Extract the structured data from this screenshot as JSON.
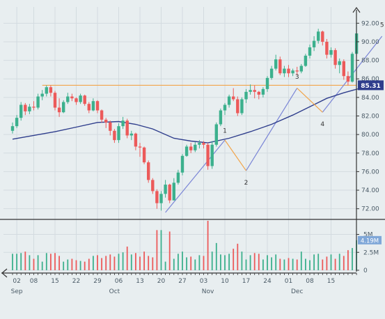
{
  "chart_data": {
    "type": "candlestick",
    "price_axis": {
      "min": 71,
      "max": 93,
      "ticks": [
        72,
        74,
        76,
        78,
        80,
        82,
        84,
        86,
        88,
        90,
        92
      ]
    },
    "price_tick_labels": [
      "72.00",
      "74.00",
      "76.00",
      "78.00",
      "80.00",
      "82.00",
      "84.00",
      "86.00",
      "88.00",
      "90.00",
      "92.00"
    ],
    "volume_axis": {
      "max": 6.8,
      "ticks": [
        0,
        2.5,
        5
      ],
      "tick_labels": [
        "0",
        "2.5M",
        "5M"
      ]
    },
    "x_day_labels": [
      "02",
      "08",
      "15",
      "22",
      "29",
      "06",
      "13",
      "20",
      "27",
      "03",
      "10",
      "17",
      "24",
      "01",
      "08",
      "15"
    ],
    "x_day_indices": [
      1,
      5,
      10,
      15,
      20,
      25,
      30,
      35,
      40,
      45,
      50,
      55,
      60,
      65,
      70,
      75
    ],
    "x_month_labels": [
      "Sep",
      "Oct",
      "Nov",
      "Dec"
    ],
    "x_month_indices": [
      1,
      24,
      46,
      67
    ],
    "colors": {
      "up": "#3cb08d",
      "down": "#ec5a5a",
      "ma": "#2e3d8c",
      "resistance": "#f2a54a",
      "trendline": "#7b86d6",
      "wave": "#f2a54a",
      "badge": "#2e3d8c",
      "vol_badge": "#7fa7d8"
    },
    "horizontal_line": {
      "value": 85.31,
      "label": "85.31"
    },
    "last_volume": {
      "value": 4.19,
      "label": "4.19M"
    },
    "wave_labels": [
      "1",
      "2",
      "3",
      "4",
      "5"
    ],
    "candles": [
      [
        80.4,
        81.3,
        80.1,
        80.9,
        2.3
      ],
      [
        80.9,
        82.1,
        80.7,
        81.8,
        2.3
      ],
      [
        81.8,
        83.5,
        81.5,
        83.2,
        2.4
      ],
      [
        83.2,
        83.4,
        82.1,
        82.5,
        2.6
      ],
      [
        82.5,
        83.3,
        82.2,
        83.0,
        2.1
      ],
      [
        83.0,
        83.6,
        82.6,
        82.9,
        1.6
      ],
      [
        82.9,
        84.4,
        82.7,
        84.1,
        2.1
      ],
      [
        84.1,
        84.8,
        83.7,
        84.4,
        1.2
      ],
      [
        84.4,
        85.3,
        84.1,
        85.1,
        2.4
      ],
      [
        85.1,
        85.3,
        84.1,
        84.5,
        2.3
      ],
      [
        84.5,
        84.7,
        82.6,
        82.9,
        2.4
      ],
      [
        82.9,
        83.9,
        81.9,
        82.4,
        2.0
      ],
      [
        82.4,
        83.7,
        82.3,
        83.5,
        1.2
      ],
      [
        83.5,
        84.5,
        83.3,
        84.1,
        1.5
      ],
      [
        84.1,
        84.4,
        83.6,
        83.9,
        1.6
      ],
      [
        83.9,
        84.0,
        83.2,
        83.5,
        1.4
      ],
      [
        83.5,
        84.4,
        83.3,
        84.2,
        1.3
      ],
      [
        84.2,
        84.3,
        83.1,
        83.3,
        1.2
      ],
      [
        83.3,
        83.5,
        82.3,
        82.6,
        1.6
      ],
      [
        82.6,
        83.9,
        82.5,
        83.6,
        2.0
      ],
      [
        83.6,
        83.7,
        82.3,
        82.6,
        2.1
      ],
      [
        82.6,
        82.7,
        81.3,
        81.6,
        1.7
      ],
      [
        81.6,
        81.8,
        80.7,
        81.3,
        2.0
      ],
      [
        81.3,
        81.5,
        79.9,
        80.4,
        2.2
      ],
      [
        80.4,
        80.6,
        79.1,
        79.4,
        1.9
      ],
      [
        79.4,
        81.2,
        79.1,
        80.9,
        2.3
      ],
      [
        80.9,
        81.9,
        80.6,
        81.5,
        2.5
      ],
      [
        81.5,
        81.7,
        79.6,
        79.9,
        3.3
      ],
      [
        79.9,
        80.4,
        79.4,
        80.1,
        2.2
      ],
      [
        80.1,
        80.2,
        78.3,
        78.7,
        2.4
      ],
      [
        78.7,
        79.1,
        77.6,
        78.6,
        1.9
      ],
      [
        78.6,
        78.7,
        76.8,
        77.0,
        2.6
      ],
      [
        77.0,
        77.2,
        74.8,
        75.1,
        2.0
      ],
      [
        75.1,
        75.3,
        73.6,
        73.9,
        1.8
      ],
      [
        73.9,
        74.1,
        72.0,
        72.6,
        5.6
      ],
      [
        72.6,
        73.9,
        71.8,
        73.6,
        5.6
      ],
      [
        73.6,
        75.1,
        73.2,
        74.6,
        1.2
      ],
      [
        74.6,
        74.7,
        72.6,
        72.9,
        5.4
      ],
      [
        72.9,
        75.3,
        72.9,
        74.8,
        1.6
      ],
      [
        74.8,
        76.2,
        74.6,
        75.9,
        2.3
      ],
      [
        75.9,
        77.9,
        75.6,
        77.7,
        2.6
      ],
      [
        77.7,
        78.9,
        77.6,
        78.7,
        1.8
      ],
      [
        78.7,
        79.1,
        78.0,
        78.3,
        1.9
      ],
      [
        78.3,
        79.2,
        78.1,
        78.9,
        1.5
      ],
      [
        78.9,
        79.4,
        78.5,
        79.1,
        2.1
      ],
      [
        79.1,
        79.3,
        78.5,
        78.9,
        2.0
      ],
      [
        78.9,
        79.1,
        76.2,
        76.6,
        6.9
      ],
      [
        76.6,
        79.3,
        76.3,
        78.9,
        2.6
      ],
      [
        78.9,
        81.3,
        78.7,
        81.1,
        3.8
      ],
      [
        81.1,
        82.8,
        80.9,
        82.6,
        2.2
      ],
      [
        82.6,
        83.4,
        82.1,
        83.2,
        2.1
      ],
      [
        83.2,
        84.3,
        82.9,
        84.1,
        2.3
      ],
      [
        84.1,
        85.0,
        83.6,
        83.8,
        3.0
      ],
      [
        83.8,
        84.1,
        82.0,
        82.3,
        3.7
      ],
      [
        82.3,
        84.0,
        82.1,
        83.8,
        2.6
      ],
      [
        83.8,
        84.9,
        83.4,
        84.6,
        1.5
      ],
      [
        84.6,
        85.4,
        84.3,
        84.8,
        2.1
      ],
      [
        84.8,
        85.3,
        83.9,
        84.6,
        2.4
      ],
      [
        84.6,
        84.7,
        83.8,
        84.3,
        2.3
      ],
      [
        84.3,
        85.1,
        84.0,
        84.9,
        1.5
      ],
      [
        84.9,
        86.3,
        84.6,
        86.1,
        2.1
      ],
      [
        86.1,
        87.4,
        85.9,
        87.1,
        1.8
      ],
      [
        87.1,
        88.6,
        86.9,
        88.1,
        2.2
      ],
      [
        88.1,
        88.4,
        86.4,
        86.6,
        1.6
      ],
      [
        86.6,
        87.4,
        86.2,
        87.1,
        1.5
      ],
      [
        87.1,
        87.5,
        86.2,
        86.6,
        1.7
      ],
      [
        86.6,
        87.1,
        86.3,
        86.9,
        1.6
      ],
      [
        86.9,
        87.3,
        86.4,
        86.8,
        1.5
      ],
      [
        86.8,
        87.6,
        86.6,
        87.4,
        2.6
      ],
      [
        87.4,
        88.7,
        87.3,
        88.5,
        1.6
      ],
      [
        88.5,
        89.7,
        88.2,
        89.4,
        1.4
      ],
      [
        89.4,
        90.6,
        89.0,
        90.1,
        2.2
      ],
      [
        90.1,
        91.4,
        89.8,
        91.1,
        2.3
      ],
      [
        91.1,
        91.2,
        89.6,
        90.0,
        1.5
      ],
      [
        90.0,
        90.3,
        88.2,
        88.6,
        1.9
      ],
      [
        88.6,
        89.4,
        88.3,
        89.1,
        2.2
      ],
      [
        89.1,
        89.3,
        87.1,
        87.5,
        1.6
      ],
      [
        87.5,
        88.2,
        86.6,
        87.9,
        2.3
      ],
      [
        87.9,
        88.1,
        85.9,
        86.3,
        2.0
      ],
      [
        86.3,
        86.8,
        85.3,
        85.7,
        2.8
      ],
      [
        85.7,
        88.9,
        85.6,
        88.7,
        3.1
      ],
      [
        88.7,
        92.0,
        88.4,
        90.9,
        4.19
      ]
    ],
    "moving_average": [
      [
        0,
        79.5
      ],
      [
        10,
        80.3
      ],
      [
        15,
        80.8
      ],
      [
        20,
        81.3
      ],
      [
        25,
        81.4
      ],
      [
        29,
        81.1
      ],
      [
        33,
        80.6
      ],
      [
        38,
        79.6
      ],
      [
        42,
        79.3
      ],
      [
        46,
        79.1
      ],
      [
        51,
        79.6
      ],
      [
        56,
        80.3
      ],
      [
        61,
        81.1
      ],
      [
        66,
        82.1
      ],
      [
        70,
        83.0
      ],
      [
        74,
        83.9
      ],
      [
        78,
        84.5
      ],
      [
        82,
        85.0
      ],
      [
        84,
        85.4
      ]
    ],
    "elliott_wave": [
      [
        50,
        79.4
      ],
      [
        55,
        76.1
      ],
      [
        67,
        85.0
      ],
      [
        73,
        82.4
      ],
      [
        82,
        85.1
      ]
    ],
    "trend_lines": [
      [
        [
          36,
          71.6
        ],
        [
          50,
          79.4
        ]
      ],
      [
        [
          55,
          76.1
        ],
        [
          67,
          85.0
        ]
      ],
      [
        [
          73,
          82.4
        ],
        [
          87,
          90.6
        ]
      ]
    ]
  }
}
